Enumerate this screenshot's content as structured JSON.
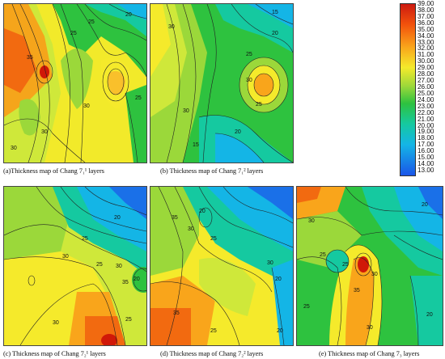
{
  "panels": [
    {
      "id": "a",
      "caption": "(a)Thickness map of Chang 7₁¹ layers",
      "contour_labels": [
        "35",
        "25",
        "25",
        "20",
        "30",
        "25",
        "30",
        "30"
      ]
    },
    {
      "id": "b",
      "caption": "(b) Thickness map of Chang 7₁² layers",
      "contour_labels": [
        "15",
        "20",
        "30",
        "25",
        "30",
        "30",
        "20",
        "25",
        "15"
      ]
    },
    {
      "id": "c",
      "caption": "(c) Thickness map of Chang 7₂¹ layers",
      "contour_labels": [
        "20",
        "25",
        "30",
        "25",
        "30",
        "35",
        "20",
        "30",
        "25"
      ]
    },
    {
      "id": "d",
      "caption": "(d) Thickness map of Chang 7₂² layers",
      "contour_labels": [
        "35",
        "30",
        "20",
        "25",
        "30",
        "20",
        "35",
        "25",
        "20"
      ]
    },
    {
      "id": "e",
      "caption": "(e) Thickness map of Chang 7₃ layers",
      "contour_labels": [
        "30",
        "20",
        "25",
        "30",
        "25",
        "35",
        "30",
        "20",
        "25"
      ]
    }
  ],
  "legend": {
    "values": [
      "39.00",
      "38.00",
      "37.00",
      "36.00",
      "35.00",
      "34.00",
      "33.00",
      "32.00",
      "31.00",
      "30.00",
      "29.00",
      "28.00",
      "27.00",
      "26.00",
      "25.00",
      "24.00",
      "23.00",
      "22.00",
      "21.00",
      "20.00",
      "19.00",
      "18.00",
      "17.00",
      "16.00",
      "15.00",
      "14.00",
      "13.00"
    ],
    "colors": [
      "#cc1a10",
      "#f2520c",
      "#f9a51b",
      "#f5ea2b",
      "#9bd83a",
      "#2ec23f",
      "#15c9a0",
      "#14b5e6",
      "#1a55e8"
    ]
  }
}
